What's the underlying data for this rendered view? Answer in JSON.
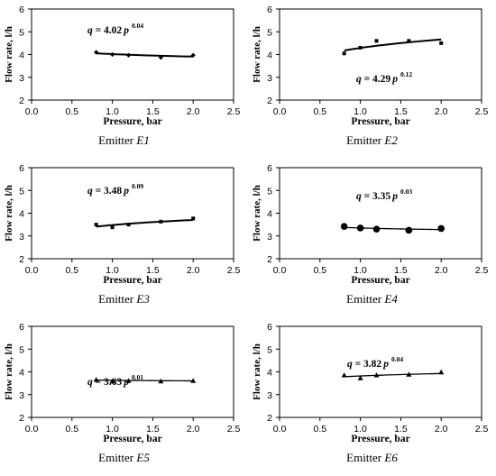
{
  "chart_data": [
    {
      "type": "scatter",
      "caption_prefix": "Emitter ",
      "caption_emitter": "E1",
      "xlabel": "Pressure, bar",
      "ylabel": "Flow rate, l/h",
      "xlim": [
        0.0,
        2.5
      ],
      "ylim": [
        2,
        6
      ],
      "xticks": [
        "0.0",
        "0.5",
        "1.0",
        "1.5",
        "2.0",
        "2.5"
      ],
      "yticks": [
        "2",
        "3",
        "4",
        "5",
        "6"
      ],
      "equation": {
        "q_part": "q",
        "eq_part": " = 4.02",
        "p_part": "p",
        "exponent": "0.04"
      },
      "marker": "diamond",
      "fit": {
        "coef": 4.02,
        "exp": -0.04,
        "xmin": 0.8,
        "xmax": 2.0
      },
      "points": [
        {
          "x": 0.8,
          "y": 4.1
        },
        {
          "x": 1.0,
          "y": 4.0
        },
        {
          "x": 1.2,
          "y": 3.97
        },
        {
          "x": 1.6,
          "y": 3.87
        },
        {
          "x": 2.0,
          "y": 3.97
        }
      ],
      "grid": false
    },
    {
      "type": "scatter",
      "caption_prefix": "Emitter ",
      "caption_emitter": "E2",
      "xlabel": "Pressure, bar",
      "ylabel": "Flow rate, l/h",
      "xlim": [
        0.0,
        2.5
      ],
      "ylim": [
        2,
        6
      ],
      "xticks": [
        "0.0",
        "0.5",
        "1.0",
        "1.5",
        "2.0",
        "2.5"
      ],
      "yticks": [
        "2",
        "3",
        "4",
        "5",
        "6"
      ],
      "equation": {
        "q_part": "q",
        "eq_part": " = 4.29",
        "p_part": "p",
        "exponent": "0.12"
      },
      "marker": "square",
      "fit": {
        "coef": 4.29,
        "exp": 0.12,
        "xmin": 0.8,
        "xmax": 2.0
      },
      "points": [
        {
          "x": 0.8,
          "y": 4.05
        },
        {
          "x": 1.0,
          "y": 4.3
        },
        {
          "x": 1.2,
          "y": 4.6
        },
        {
          "x": 1.6,
          "y": 4.6
        },
        {
          "x": 2.0,
          "y": 4.5
        }
      ],
      "grid": false
    },
    {
      "type": "scatter",
      "caption_prefix": "Emitter ",
      "caption_emitter": "E3",
      "xlabel": "Pressure, bar",
      "ylabel": "Flow rate, l/h",
      "xlim": [
        0.0,
        2.5
      ],
      "ylim": [
        2,
        6
      ],
      "xticks": [
        "0.0",
        "0.5",
        "1.0",
        "1.5",
        "2.0",
        "2.5"
      ],
      "yticks": [
        "2",
        "3",
        "4",
        "5",
        "6"
      ],
      "equation": {
        "q_part": "q",
        "eq_part": " = 3.48",
        "p_part": "p",
        "exponent": "0.09"
      },
      "marker": "square",
      "fit": {
        "coef": 3.48,
        "exp": 0.09,
        "xmin": 0.8,
        "xmax": 2.0
      },
      "points": [
        {
          "x": 0.8,
          "y": 3.5
        },
        {
          "x": 1.0,
          "y": 3.38
        },
        {
          "x": 1.2,
          "y": 3.5
        },
        {
          "x": 1.6,
          "y": 3.63
        },
        {
          "x": 2.0,
          "y": 3.77
        }
      ],
      "grid": false
    },
    {
      "type": "scatter",
      "caption_prefix": "Emitter ",
      "caption_emitter": "E4",
      "xlabel": "Pressure, bar",
      "ylabel": "Flow rate, l/h",
      "xlim": [
        0.0,
        2.5
      ],
      "ylim": [
        2,
        6
      ],
      "xticks": [
        "0.0",
        "0.5",
        "1.0",
        "1.5",
        "2.0",
        "2.5"
      ],
      "yticks": [
        "2",
        "3",
        "4",
        "5",
        "6"
      ],
      "equation": {
        "q_part": "q",
        "eq_part": " = 3.35",
        "p_part": "p",
        "exponent": "0.03"
      },
      "marker": "circle",
      "fit": {
        "coef": 3.35,
        "exp": -0.03,
        "xmin": 0.8,
        "xmax": 2.0
      },
      "points": [
        {
          "x": 0.8,
          "y": 3.42
        },
        {
          "x": 1.0,
          "y": 3.35
        },
        {
          "x": 1.2,
          "y": 3.3
        },
        {
          "x": 1.6,
          "y": 3.25
        },
        {
          "x": 2.0,
          "y": 3.33
        }
      ],
      "grid": false
    },
    {
      "type": "scatter",
      "caption_prefix": "Emitter ",
      "caption_emitter": "E5",
      "xlabel": "Pressure, bar",
      "ylabel": "Flow rate, l/h",
      "xlim": [
        0.0,
        2.5
      ],
      "ylim": [
        2,
        6
      ],
      "xticks": [
        "0.0",
        "0.5",
        "1.0",
        "1.5",
        "2.0",
        "2.5"
      ],
      "yticks": [
        "2",
        "3",
        "4",
        "5",
        "6"
      ],
      "equation": {
        "q_part": "q",
        "eq_part": " = 3.63",
        "p_part": "p",
        "exponent": "0.01"
      },
      "marker": "triangle",
      "fit": {
        "coef": 3.63,
        "exp": -0.01,
        "xmin": 0.8,
        "xmax": 2.0
      },
      "points": [
        {
          "x": 0.8,
          "y": 3.65
        },
        {
          "x": 1.0,
          "y": 3.58
        },
        {
          "x": 1.2,
          "y": 3.6
        },
        {
          "x": 1.6,
          "y": 3.58
        },
        {
          "x": 2.0,
          "y": 3.6
        }
      ],
      "grid": false
    },
    {
      "type": "scatter",
      "caption_prefix": "Emitter ",
      "caption_emitter": "E6",
      "xlabel": "Pressure, bar",
      "ylabel": "Flow rate, l/h",
      "xlim": [
        0.0,
        2.5
      ],
      "ylim": [
        2,
        6
      ],
      "xticks": [
        "0.0",
        "0.5",
        "1.0",
        "1.5",
        "2.0",
        "2.5"
      ],
      "yticks": [
        "2",
        "3",
        "4",
        "5",
        "6"
      ],
      "equation": {
        "q_part": "q",
        "eq_part": " = 3.82",
        "p_part": "p",
        "exponent": "0.04"
      },
      "marker": "triangle",
      "fit": {
        "coef": 3.82,
        "exp": 0.04,
        "xmin": 0.8,
        "xmax": 2.0
      },
      "points": [
        {
          "x": 0.8,
          "y": 3.85
        },
        {
          "x": 1.0,
          "y": 3.72
        },
        {
          "x": 1.2,
          "y": 3.85
        },
        {
          "x": 1.6,
          "y": 3.88
        },
        {
          "x": 2.0,
          "y": 3.98
        }
      ],
      "grid": false
    }
  ]
}
